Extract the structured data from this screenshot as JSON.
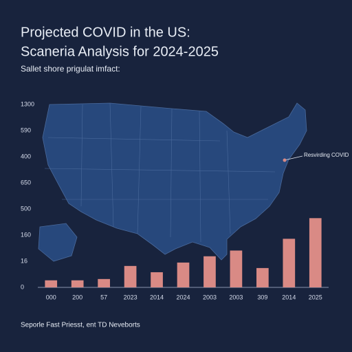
{
  "chart_data": {
    "type": "bar",
    "title": "Projected COVID in the US:",
    "subtitle": "Scaneria Analysis for 2024-2025",
    "caption": "Sallet shore prigulat imfact:",
    "annotation": "Resvirding COVID",
    "footer": "Seporle Fast Priesst, ent TD Neveborts",
    "categories": [
      "000",
      "200",
      "57",
      "2023",
      "2014",
      "2024",
      "2003",
      "2003",
      "309",
      "2014",
      "2025"
    ],
    "values": [
      0.27,
      0.27,
      0.32,
      0.82,
      0.58,
      0.95,
      1.19,
      1.41,
      0.74,
      1.86,
      2.65
    ],
    "color": "#d98a85",
    "ylim": [
      0,
      7
    ],
    "yticks": [
      0,
      {
        "value": 1,
        "label": "16"
      },
      {
        "value": 2,
        "label": "160"
      },
      {
        "value": 3,
        "label": "500"
      },
      {
        "value": 4,
        "label": "650"
      },
      {
        "value": 5,
        "label": "400"
      },
      {
        "value": 6,
        "label": "590"
      },
      {
        "value": 7,
        "label": "1300"
      }
    ],
    "grid": false
  }
}
